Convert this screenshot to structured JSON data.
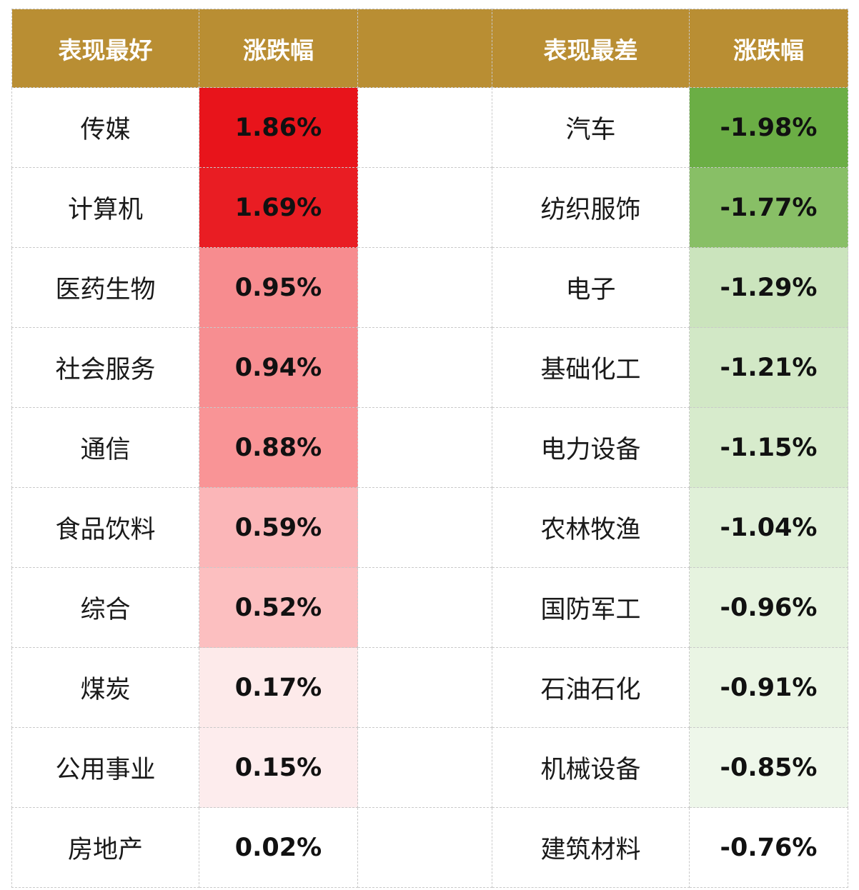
{
  "headers": {
    "best": "表现最好",
    "change_left": "涨跌幅",
    "worst": "表现最差",
    "change_right": "涨跌幅"
  },
  "best": [
    {
      "name": "传媒",
      "value": "1.86%",
      "color": "#e8141b"
    },
    {
      "name": "计算机",
      "value": "1.69%",
      "color": "#e91d23"
    },
    {
      "name": "医药生物",
      "value": "0.95%",
      "color": "#f78c8f"
    },
    {
      "name": "社会服务",
      "value": "0.94%",
      "color": "#f78e91"
    },
    {
      "name": "通信",
      "value": "0.88%",
      "color": "#f99496"
    },
    {
      "name": "食品饮料",
      "value": "0.59%",
      "color": "#fbb6b8"
    },
    {
      "name": "综合",
      "value": "0.52%",
      "color": "#fcbfc0"
    },
    {
      "name": "煤炭",
      "value": "0.17%",
      "color": "#fdeaea"
    },
    {
      "name": "公用事业",
      "value": "0.15%",
      "color": "#fdeced"
    },
    {
      "name": "房地产",
      "value": "0.02%",
      "color": "#ffffff"
    }
  ],
  "worst": [
    {
      "name": "汽车",
      "value": "-1.98%",
      "color": "#6bae45"
    },
    {
      "name": "纺织服饰",
      "value": "-1.77%",
      "color": "#88bf66"
    },
    {
      "name": "电子",
      "value": "-1.29%",
      "color": "#cbe4bd"
    },
    {
      "name": "基础化工",
      "value": "-1.21%",
      "color": "#d2e8c6"
    },
    {
      "name": "电力设备",
      "value": "-1.15%",
      "color": "#d7ebcc"
    },
    {
      "name": "农林牧渔",
      "value": "-1.04%",
      "color": "#e0f0d8"
    },
    {
      "name": "国防军工",
      "value": "-0.96%",
      "color": "#e6f3df"
    },
    {
      "name": "石油石化",
      "value": "-0.91%",
      "color": "#eaf5e4"
    },
    {
      "name": "机械设备",
      "value": "-0.85%",
      "color": "#eef7ea"
    },
    {
      "name": "建筑材料",
      "value": "-0.76%",
      "color": "#ffffff"
    }
  ]
}
